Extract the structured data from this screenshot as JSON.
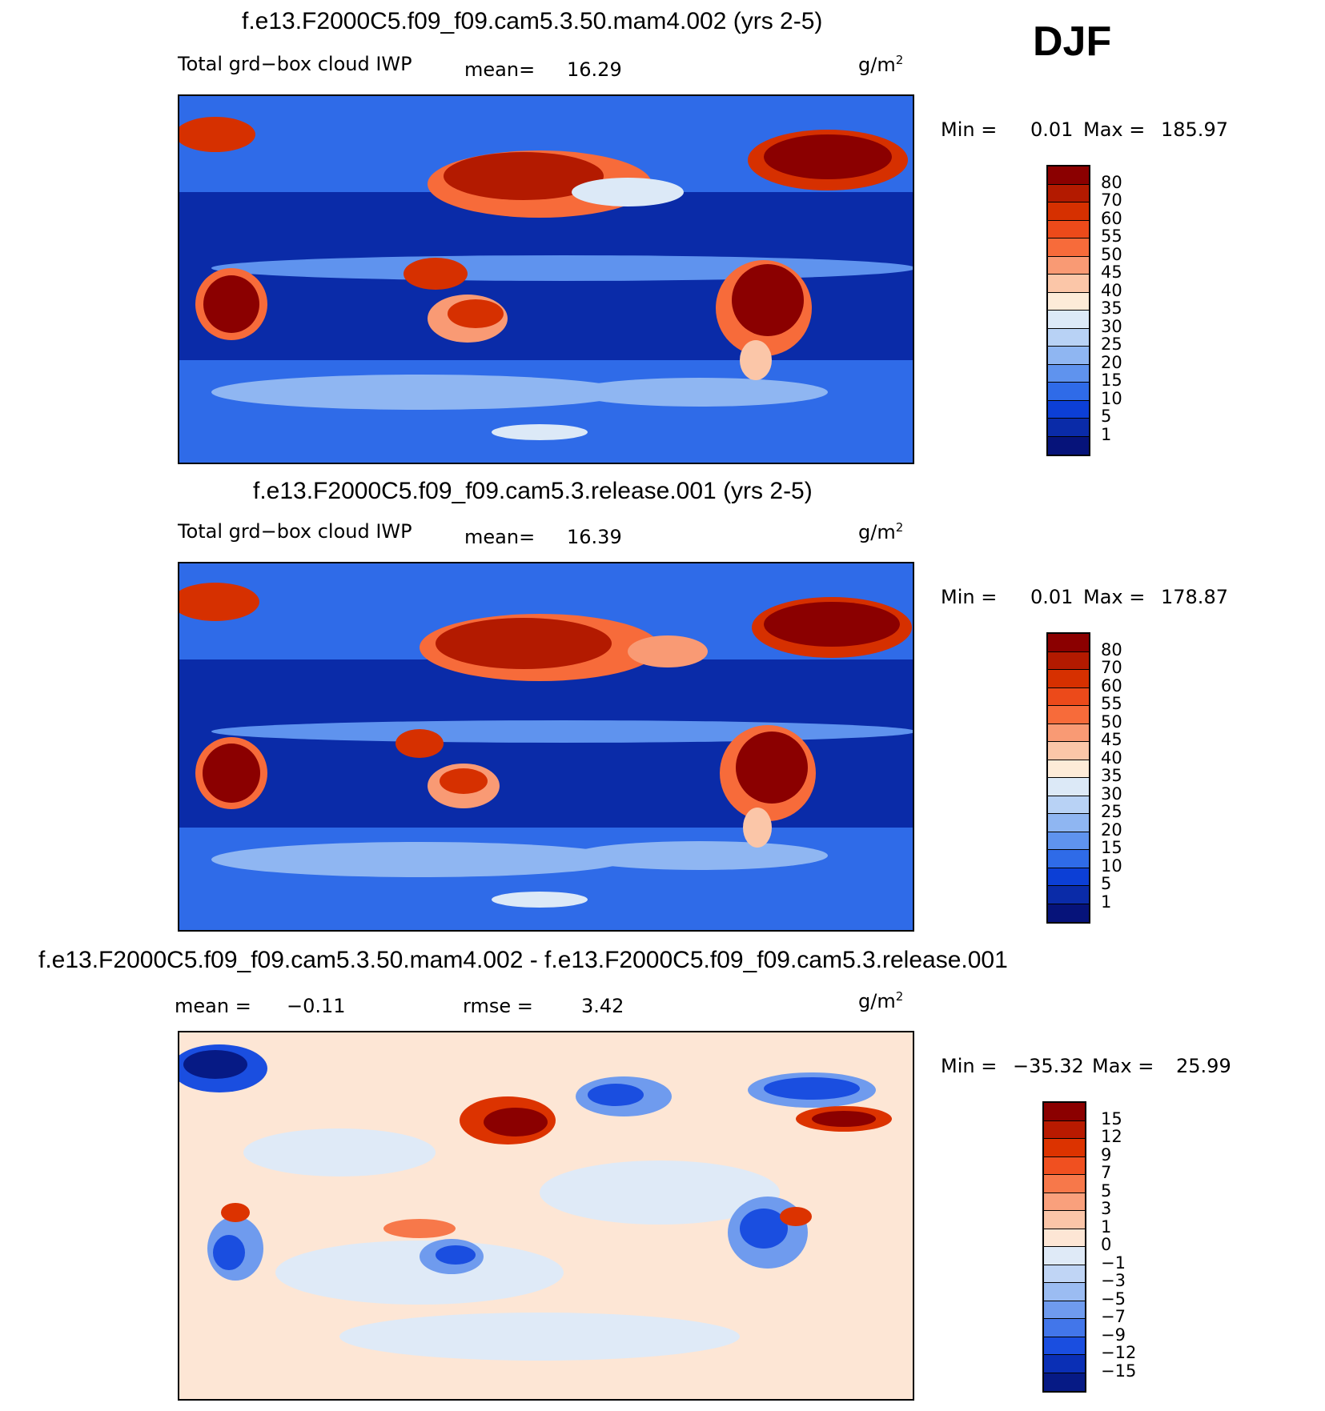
{
  "season": "DJF",
  "panels": [
    {
      "title": "f.e13.F2000C5.f09_f09.cam5.3.50.mam4.002 (yrs 2-5)",
      "left_label": "Total grd−box cloud IWP",
      "mean_label": "mean=",
      "mean_value": "16.29",
      "units_base": "g/m",
      "units_exp": "2",
      "min_label": "Min =",
      "min_value": "0.01",
      "max_label": "Max =",
      "max_value": "185.97",
      "colorbar": {
        "levels": [
          "80",
          "70",
          "60",
          "55",
          "50",
          "45",
          "40",
          "35",
          "30",
          "25",
          "20",
          "15",
          "10",
          "5",
          "1"
        ],
        "colors": [
          "#8b0000",
          "#b31a00",
          "#d63000",
          "#ec4a1a",
          "#f76b3a",
          "#f99a74",
          "#fbc6a8",
          "#fdebd8",
          "#dce9f7",
          "#b8d2f5",
          "#8fb6f2",
          "#5f93ee",
          "#2f6be8",
          "#0c3fd6",
          "#0a2ba8",
          "#06137a"
        ]
      }
    },
    {
      "title": "f.e13.F2000C5.f09_f09.cam5.3.release.001 (yrs 2-5)",
      "left_label": "Total grd−box cloud IWP",
      "mean_label": "mean=",
      "mean_value": "16.39",
      "units_base": "g/m",
      "units_exp": "2",
      "min_label": "Min =",
      "min_value": "0.01",
      "max_label": "Max =",
      "max_value": "178.87",
      "colorbar": {
        "levels": [
          "80",
          "70",
          "60",
          "55",
          "50",
          "45",
          "40",
          "35",
          "30",
          "25",
          "20",
          "15",
          "10",
          "5",
          "1"
        ],
        "colors": [
          "#8b0000",
          "#b31a00",
          "#d63000",
          "#ec4a1a",
          "#f76b3a",
          "#f99a74",
          "#fbc6a8",
          "#fdebd8",
          "#dce9f7",
          "#b8d2f5",
          "#8fb6f2",
          "#5f93ee",
          "#2f6be8",
          "#0c3fd6",
          "#0a2ba8",
          "#06137a"
        ]
      }
    },
    {
      "title": "f.e13.F2000C5.f09_f09.cam5.3.50.mam4.002 - f.e13.F2000C5.f09_f09.cam5.3.release.001",
      "mean_label": "mean =",
      "mean_value": "−0.11",
      "rmse_label": "rmse =",
      "rmse_value": "3.42",
      "units_base": "g/m",
      "units_exp": "2",
      "min_label": "Min =",
      "min_value": "−35.32",
      "max_label": "Max =",
      "max_value": "25.99",
      "colorbar": {
        "levels": [
          "15",
          "12",
          "9",
          "7",
          "5",
          "3",
          "1",
          "0",
          "−1",
          "−3",
          "−5",
          "−7",
          "−9",
          "−12",
          "−15"
        ],
        "colors": [
          "#8b0000",
          "#b81a00",
          "#dc3300",
          "#f05020",
          "#f7784a",
          "#f9a07c",
          "#fbc5a8",
          "#fde6d5",
          "#dfeaf7",
          "#c0d5f5",
          "#9bbcf2",
          "#6f9bee",
          "#4276ea",
          "#1a4ee0",
          "#0a2fb5",
          "#061a85"
        ]
      }
    }
  ],
  "chart_data": [
    {
      "type": "heatmap",
      "title": "f.e13.F2000C5.f09_f09.cam5.3.50.mam4.002 (yrs 2-5)",
      "variable": "Total grd−box cloud IWP",
      "units": "g/m2",
      "mean": 16.29,
      "min": 0.01,
      "max": 185.97,
      "contour_levels": [
        1,
        5,
        10,
        15,
        20,
        25,
        30,
        35,
        40,
        45,
        50,
        55,
        60,
        70,
        80
      ]
    },
    {
      "type": "heatmap",
      "title": "f.e13.F2000C5.f09_f09.cam5.3.release.001 (yrs 2-5)",
      "variable": "Total grd−box cloud IWP",
      "units": "g/m2",
      "mean": 16.39,
      "min": 0.01,
      "max": 178.87,
      "contour_levels": [
        1,
        5,
        10,
        15,
        20,
        25,
        30,
        35,
        40,
        45,
        50,
        55,
        60,
        70,
        80
      ]
    },
    {
      "type": "heatmap",
      "title": "f.e13.F2000C5.f09_f09.cam5.3.50.mam4.002 - f.e13.F2000C5.f09_f09.cam5.3.release.001",
      "units": "g/m2",
      "mean": -0.11,
      "rmse": 3.42,
      "min": -35.32,
      "max": 25.99,
      "contour_levels": [
        -15,
        -12,
        -9,
        -7,
        -5,
        -3,
        -1,
        0,
        1,
        3,
        5,
        7,
        9,
        12,
        15
      ]
    }
  ]
}
